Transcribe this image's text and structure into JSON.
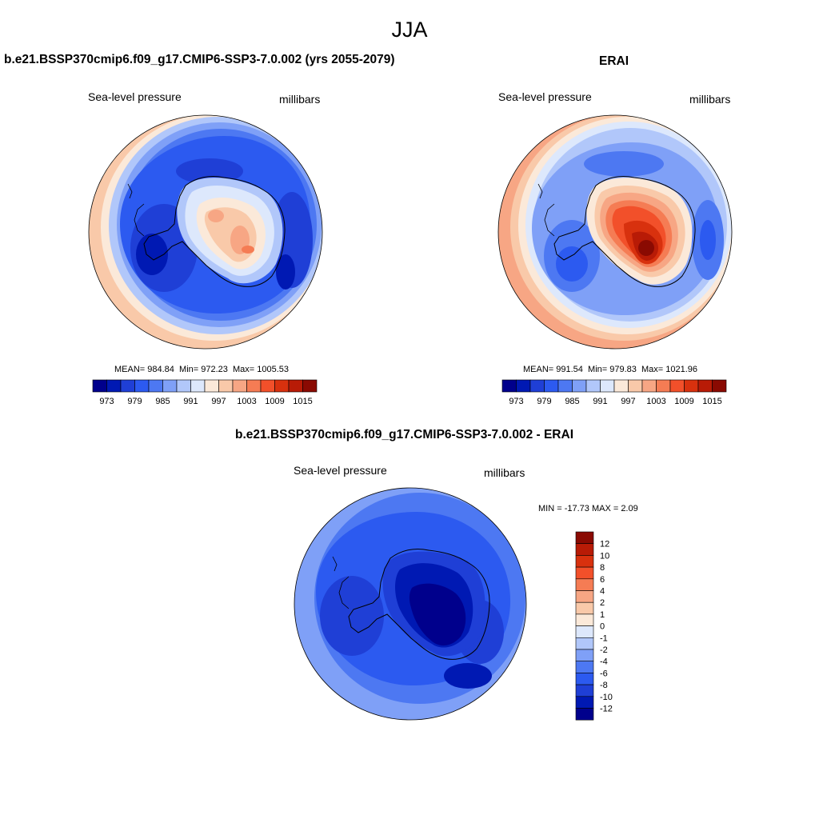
{
  "figure": {
    "season": "JJA"
  },
  "panels": [
    {
      "title": "b.e21.BSSP370cmip6.f09_g17.CMIP6-SSP3-7.0.002 (yrs 2055-2079)",
      "left_label": "Sea-level pressure",
      "right_label": "millibars",
      "stats": {
        "mean_text": "MEAN= 984.84",
        "min_text": "Min= 972.23",
        "max_text": "Max= 1005.53"
      }
    },
    {
      "title": "ERAI",
      "left_label": "Sea-level pressure",
      "right_label": "millibars",
      "stats": {
        "mean_text": "MEAN= 991.54",
        "min_text": "Min= 979.83",
        "max_text": "Max= 1021.96"
      }
    },
    {
      "title": "b.e21.BSSP370cmip6.f09_g17.CMIP6-SSP3-7.0.002 - ERAI",
      "left_label": "Sea-level pressure",
      "right_label": "millibars",
      "stats": {
        "minmax_text": "MIN = -17.73 MAX =   2.09"
      }
    }
  ],
  "colorbars": {
    "absolute": {
      "colors": [
        "#00008c",
        "#0019b3",
        "#1f3fd6",
        "#2c5af0",
        "#4d78f2",
        "#7fa0f7",
        "#b1c7fa",
        "#dde8fc",
        "#fbe9d9",
        "#f9c9a9",
        "#f7a684",
        "#f57c54",
        "#f2502a",
        "#d8310e",
        "#b81b06",
        "#8a0a02"
      ],
      "tick_labels": [
        "973",
        "979",
        "985",
        "991",
        "997",
        "1003",
        "1009",
        "1015"
      ]
    },
    "difference": {
      "colors": [
        "#00008c",
        "#0019b3",
        "#1f3fd6",
        "#2c5af0",
        "#4d78f2",
        "#7fa0f7",
        "#b1c7fa",
        "#dde8fc",
        "#fbe9d9",
        "#f9c9a9",
        "#f7a684",
        "#f57c54",
        "#f2502a",
        "#d8310e",
        "#b81b06",
        "#8a0a02"
      ],
      "tick_labels": [
        "12",
        "10",
        "8",
        "6",
        "4",
        "2",
        "1",
        "0",
        "-1",
        "-2",
        "-4",
        "-6",
        "-8",
        "-10",
        "-12"
      ]
    }
  }
}
